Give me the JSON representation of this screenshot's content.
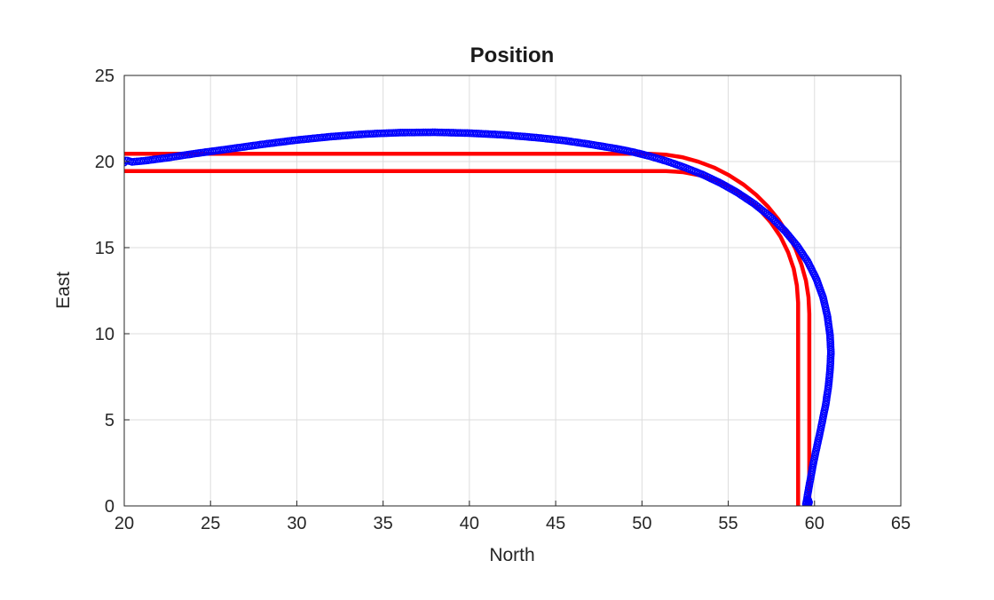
{
  "figure": {
    "background_color": "#ffffff"
  },
  "chart_data": {
    "type": "line",
    "title": "Position",
    "xlabel": "North",
    "ylabel": "East",
    "xlim": [
      20,
      65
    ],
    "ylim": [
      0,
      25
    ],
    "xticks": [
      20,
      25,
      30,
      35,
      40,
      45,
      50,
      55,
      60,
      65
    ],
    "yticks": [
      0,
      5,
      10,
      15,
      20,
      25
    ],
    "grid": true,
    "legend": "none",
    "grid_color": "#dcdcdc",
    "axis_color": "#262626",
    "text_color": "#262626",
    "title_color": "#1a1a1a",
    "series": [
      {
        "name": "reference-path-outer",
        "style": "line",
        "color": "#ff0000",
        "line_width": 4.5,
        "points": [
          [
            20,
            20.45
          ],
          [
            50.4,
            20.45
          ],
          [
            51.37,
            20.4
          ],
          [
            52.33,
            20.25
          ],
          [
            53.27,
            19.99
          ],
          [
            54.18,
            19.65
          ],
          [
            55.05,
            19.2
          ],
          [
            55.87,
            18.67
          ],
          [
            56.62,
            18.06
          ],
          [
            57.31,
            17.37
          ],
          [
            57.92,
            16.62
          ],
          [
            58.45,
            15.8
          ],
          [
            58.9,
            14.93
          ],
          [
            59.24,
            14.02
          ],
          [
            59.5,
            13.08
          ],
          [
            59.65,
            12.12
          ],
          [
            59.7,
            11.15
          ],
          [
            59.7,
            0
          ]
        ]
      },
      {
        "name": "reference-path-inner",
        "style": "line",
        "color": "#ff0000",
        "line_width": 4.5,
        "points": [
          [
            20,
            19.45
          ],
          [
            51.4,
            19.45
          ],
          [
            52.4,
            19.38
          ],
          [
            53.38,
            19.19
          ],
          [
            54.33,
            18.87
          ],
          [
            55.23,
            18.43
          ],
          [
            56.06,
            17.87
          ],
          [
            56.81,
            17.21
          ],
          [
            57.47,
            16.46
          ],
          [
            58.03,
            15.63
          ],
          [
            58.47,
            14.73
          ],
          [
            58.79,
            13.78
          ],
          [
            58.98,
            12.8
          ],
          [
            59.05,
            11.8
          ],
          [
            59.05,
            0
          ]
        ]
      },
      {
        "name": "vehicle-trajectory",
        "style": "markers",
        "color": "#0000ff",
        "marker": "o",
        "marker_radius": 3.6,
        "marker_stroke": 1.5,
        "marker_spacing": 2.6,
        "points": [
          [
            20.0,
            19.95
          ],
          [
            20.1,
            20.08
          ],
          [
            20.45,
            19.98
          ],
          [
            21.2,
            20.05
          ],
          [
            22.5,
            20.22
          ],
          [
            24,
            20.45
          ],
          [
            26,
            20.72
          ],
          [
            28,
            21.0
          ],
          [
            30,
            21.25
          ],
          [
            32,
            21.45
          ],
          [
            34,
            21.6
          ],
          [
            36,
            21.68
          ],
          [
            38,
            21.7
          ],
          [
            40,
            21.65
          ],
          [
            42,
            21.55
          ],
          [
            44,
            21.38
          ],
          [
            45.5,
            21.22
          ],
          [
            47,
            21.0
          ],
          [
            48.5,
            20.75
          ],
          [
            49.5,
            20.55
          ],
          [
            50.5,
            20.3
          ],
          [
            51.5,
            20.0
          ],
          [
            52.5,
            19.65
          ],
          [
            53.5,
            19.25
          ],
          [
            54.5,
            18.78
          ],
          [
            55.5,
            18.22
          ],
          [
            56.5,
            17.55
          ],
          [
            57.5,
            16.75
          ],
          [
            58.3,
            15.95
          ],
          [
            59.0,
            15.1
          ],
          [
            59.6,
            14.2
          ],
          [
            60.1,
            13.2
          ],
          [
            60.5,
            12.1
          ],
          [
            60.75,
            11.0
          ],
          [
            60.9,
            9.9
          ],
          [
            60.95,
            8.9
          ],
          [
            60.9,
            7.9
          ],
          [
            60.8,
            6.9
          ],
          [
            60.65,
            5.9
          ],
          [
            60.45,
            4.9
          ],
          [
            60.25,
            3.95
          ],
          [
            60.05,
            3.05
          ],
          [
            59.9,
            2.3
          ],
          [
            59.78,
            1.65
          ],
          [
            59.68,
            1.1
          ],
          [
            59.6,
            0.65
          ],
          [
            59.54,
            0.3
          ],
          [
            59.5,
            0.1
          ],
          [
            59.62,
            0.4
          ],
          [
            59.7,
            0.15
          ],
          [
            59.58,
            0.02
          ]
        ]
      }
    ]
  }
}
